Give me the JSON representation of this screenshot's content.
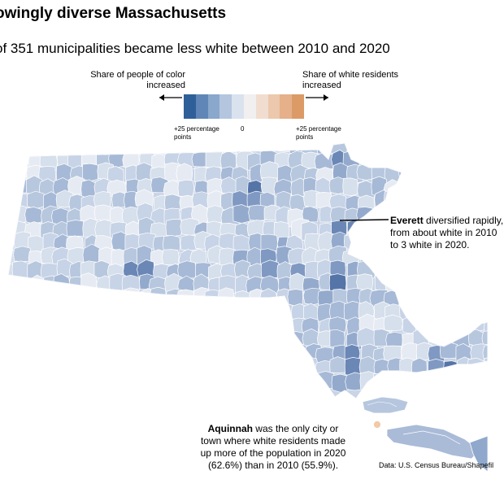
{
  "header": {
    "title": "owingly diverse Massachusetts",
    "subtitle": "of 351 municipalities became less white between 2010 and 2020"
  },
  "legend": {
    "left_label": "Share of people of color increased",
    "right_label": "Share of white residents increased",
    "tick_left": "+25 percentage points",
    "tick_mid": "0",
    "tick_right": "+25 percentage points",
    "swatches": [
      "#2f5f98",
      "#5f86b7",
      "#8aa7cc",
      "#b3c6de",
      "#d9e2ee",
      "#f1efef",
      "#f1ddd0",
      "#ecc8ac",
      "#e5b08a",
      "#db9a66"
    ]
  },
  "annotations": {
    "everett_name": "Everett",
    "everett_text": " diversified rapidly, from about white in 2010 to 3 white in 2020.",
    "aquinnah_name": "Aquinnah",
    "aquinnah_text": " was the only city or town where white residents made up more of the population in 2020 (62.6%) than in 2010 (55.9%)."
  },
  "source": "Data: U.S. Census Bureau/Shapefil",
  "colors": {
    "state_fill_base": "#c9d4e6",
    "border_color": "#ffffff",
    "aquinnah_fill": "#f3c9a6"
  }
}
